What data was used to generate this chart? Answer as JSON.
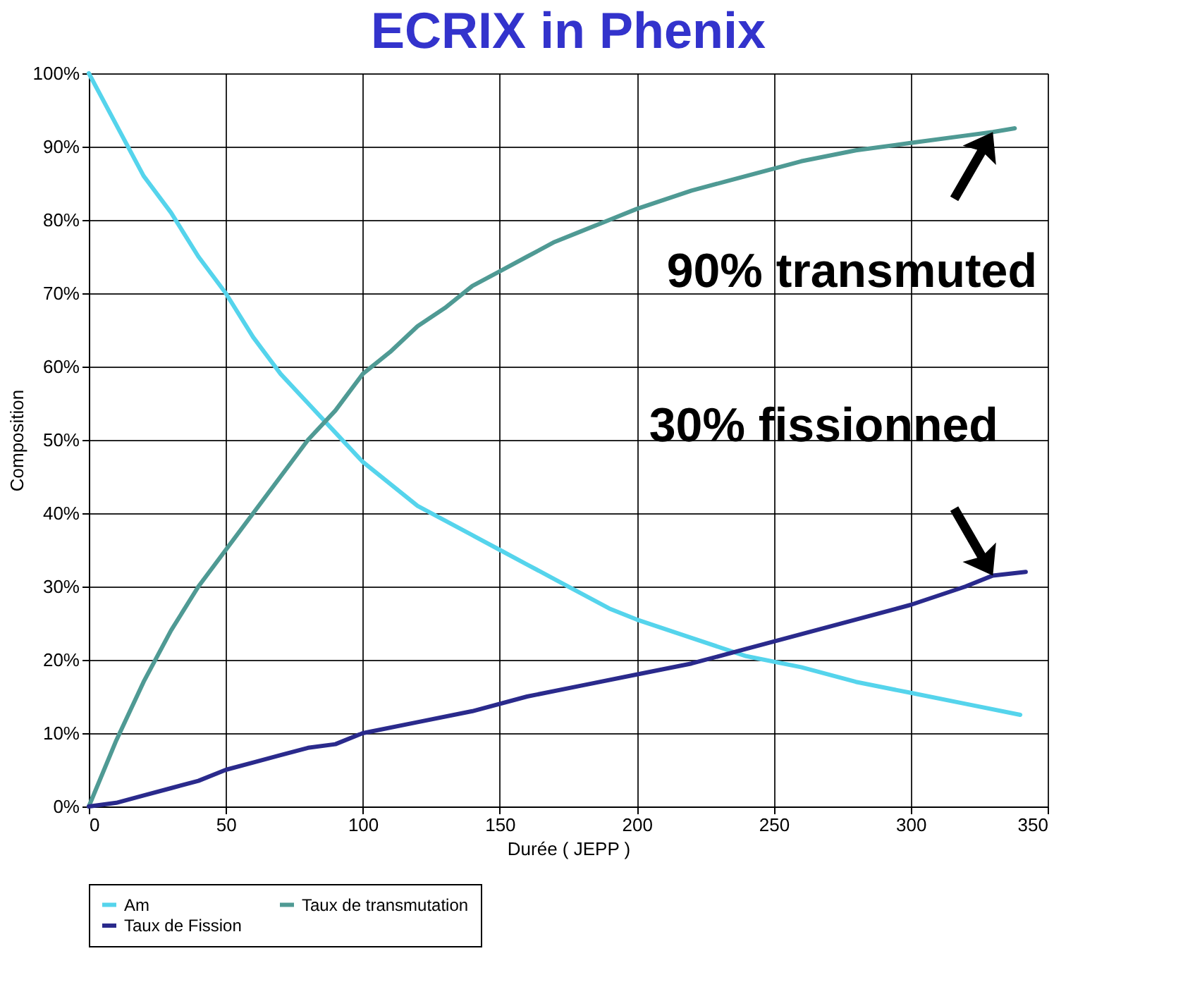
{
  "chart_data": {
    "type": "line",
    "title": "ECRIX in Phenix",
    "xlabel": "Durée ( JEPP )",
    "ylabel": "Composition",
    "xlim": [
      0,
      350
    ],
    "xticks": [
      0,
      50,
      100,
      150,
      200,
      250,
      300,
      350
    ],
    "ylim": [
      0,
      100
    ],
    "yticks": [
      {
        "value": 0,
        "label": "0%"
      },
      {
        "value": 10,
        "label": "10%"
      },
      {
        "value": 20,
        "label": "20%"
      },
      {
        "value": 30,
        "label": "30%"
      },
      {
        "value": 40,
        "label": "40%"
      },
      {
        "value": 50,
        "label": "50%"
      },
      {
        "value": 60,
        "label": "60%"
      },
      {
        "value": 70,
        "label": "70%"
      },
      {
        "value": 80,
        "label": "80%"
      },
      {
        "value": 90,
        "label": "90%"
      },
      {
        "value": 100,
        "label": "100%"
      }
    ],
    "grid": true,
    "legend": "bottom",
    "marker": "none",
    "line_style": "solid",
    "series": [
      {
        "name": "Am",
        "color": "#55d4ec",
        "x": [
          0,
          10,
          20,
          30,
          40,
          50,
          60,
          70,
          80,
          90,
          100,
          110,
          120,
          130,
          140,
          150,
          160,
          170,
          180,
          190,
          200,
          220,
          240,
          260,
          280,
          300,
          320,
          340
        ],
        "values": [
          100,
          93,
          86,
          81,
          75,
          70,
          64,
          59,
          55,
          51,
          47,
          44,
          41,
          39,
          37,
          35,
          33,
          31,
          29,
          27,
          25.5,
          23,
          20.5,
          19,
          17,
          15.5,
          14,
          12.5
        ]
      },
      {
        "name": "Taux de transmutation",
        "color": "#4f9a94",
        "x": [
          0,
          10,
          20,
          30,
          40,
          50,
          60,
          70,
          80,
          90,
          100,
          110,
          120,
          130,
          140,
          150,
          160,
          170,
          180,
          190,
          200,
          220,
          240,
          260,
          280,
          300,
          320,
          330,
          338
        ],
        "values": [
          0,
          9,
          17,
          24,
          30,
          35,
          40,
          45,
          50,
          54,
          59,
          62,
          65.5,
          68,
          71,
          73,
          75,
          77,
          78.5,
          80,
          81.5,
          84,
          86,
          88,
          89.5,
          90.5,
          91.5,
          92,
          92.5
        ]
      },
      {
        "name": "Taux de Fission",
        "color": "#2a2a8c",
        "x": [
          0,
          10,
          20,
          30,
          40,
          50,
          60,
          70,
          80,
          90,
          100,
          120,
          140,
          160,
          180,
          200,
          220,
          240,
          260,
          280,
          300,
          320,
          330,
          342
        ],
        "values": [
          0,
          0.5,
          1.5,
          2.5,
          3.5,
          5,
          6,
          7,
          8,
          8.5,
          10,
          11.5,
          13,
          15,
          16.5,
          18,
          19.5,
          21.5,
          23.5,
          25.5,
          27.5,
          30,
          31.5,
          32
        ]
      }
    ],
    "annotations": [
      {
        "text": "90% transmuted",
        "x": 330,
        "y": 92
      },
      {
        "text": "30% fissionned",
        "x": 330,
        "y": 31.5
      }
    ]
  }
}
